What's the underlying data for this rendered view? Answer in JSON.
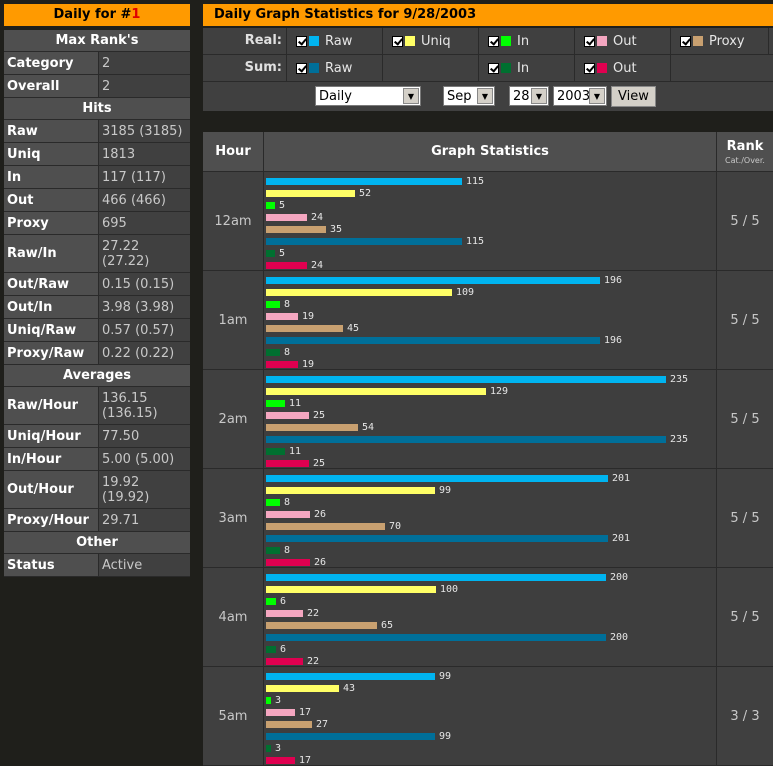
{
  "left": {
    "title_prefix": "Daily for #",
    "title_num": "1",
    "sections": [
      {
        "heading": "Max Rank's",
        "rows": [
          {
            "k": "Category",
            "v": [
              "2"
            ]
          },
          {
            "k": "Overall",
            "v": [
              "2"
            ]
          }
        ]
      },
      {
        "heading": "Hits",
        "rows": [
          {
            "k": "Raw",
            "v": [
              "3185 (3185)"
            ]
          },
          {
            "k": "Uniq",
            "v": [
              "1813"
            ]
          },
          {
            "k": "In",
            "v": [
              "117 (117)"
            ]
          },
          {
            "k": "Out",
            "v": [
              "466 (466)"
            ]
          },
          {
            "k": "Proxy",
            "v": [
              "695"
            ]
          },
          {
            "k": "Raw/In",
            "v": [
              "27.22",
              "(27.22)"
            ]
          },
          {
            "k": "Out/Raw",
            "v": [
              "0.15 (0.15)"
            ]
          },
          {
            "k": "Out/In",
            "v": [
              "3.98 (3.98)"
            ]
          },
          {
            "k": "Uniq/Raw",
            "v": [
              "0.57 (0.57)"
            ]
          },
          {
            "k": "Proxy/Raw",
            "v": [
              "0.22 (0.22)"
            ]
          }
        ]
      },
      {
        "heading": "Averages",
        "rows": [
          {
            "k": "Raw/Hour",
            "v": [
              "136.15",
              "(136.15)"
            ]
          },
          {
            "k": "Uniq/Hour",
            "v": [
              "77.50"
            ]
          },
          {
            "k": "In/Hour",
            "v": [
              "5.00 (5.00)"
            ]
          },
          {
            "k": "Out/Hour",
            "v": [
              "19.92",
              "(19.92)"
            ]
          },
          {
            "k": "Proxy/Hour",
            "v": [
              "29.71"
            ]
          }
        ]
      },
      {
        "heading": "Other",
        "rows": [
          {
            "k": "Status",
            "v": [
              "Active"
            ]
          }
        ]
      }
    ]
  },
  "right": {
    "title": "Daily Graph Statistics for 9/28/2003",
    "real_label": "Real:",
    "sum_label": "Sum:",
    "real_items": [
      {
        "label": "Raw",
        "color": "#00b4f0"
      },
      {
        "label": "Uniq",
        "color": "#ffff66"
      },
      {
        "label": "In",
        "color": "#00ff00"
      },
      {
        "label": "Out",
        "color": "#f4a6c0"
      },
      {
        "label": "Proxy",
        "color": "#c8a070"
      }
    ],
    "sum_items": [
      {
        "label": "Raw",
        "color": "#006f99"
      },
      {
        "label": "",
        "color": ""
      },
      {
        "label": "In",
        "color": "#007030"
      },
      {
        "label": "Out",
        "color": "#e00050"
      }
    ],
    "period_select": "Daily",
    "month_select": "Sep",
    "day_select": "28",
    "year_select": "2003",
    "view_button": "View"
  },
  "table": {
    "col_hour": "Hour",
    "col_graph": "Graph Statistics",
    "col_rank": "Rank",
    "col_rank_sub": "Cat./Over."
  },
  "chart_data": {
    "type": "bar",
    "orientation": "horizontal",
    "series_order": [
      "Raw",
      "Uniq",
      "In",
      "Out",
      "Proxy",
      "Sum Raw",
      "Sum In",
      "Sum Out"
    ],
    "colors": [
      "#00b4f0",
      "#ffff66",
      "#00ff00",
      "#f4a6c0",
      "#c8a070",
      "#006f99",
      "#007030",
      "#e00050"
    ],
    "rows": [
      {
        "hour": "12am",
        "values": [
          115,
          52,
          5,
          24,
          35,
          115,
          5,
          24
        ],
        "rank": "5 / 5"
      },
      {
        "hour": "1am",
        "values": [
          196,
          109,
          8,
          19,
          45,
          196,
          8,
          19
        ],
        "rank": "5 / 5"
      },
      {
        "hour": "2am",
        "values": [
          235,
          129,
          11,
          25,
          54,
          235,
          11,
          25
        ],
        "rank": "5 / 5"
      },
      {
        "hour": "3am",
        "values": [
          201,
          99,
          8,
          26,
          70,
          201,
          8,
          26
        ],
        "rank": "5 / 5"
      },
      {
        "hour": "4am",
        "values": [
          200,
          100,
          6,
          22,
          65,
          200,
          6,
          22
        ],
        "rank": "5 / 5"
      },
      {
        "hour": "5am",
        "values": [
          99,
          43,
          3,
          17,
          27,
          99,
          3,
          17
        ],
        "rank": "3 / 3"
      }
    ],
    "max_value": 235
  }
}
